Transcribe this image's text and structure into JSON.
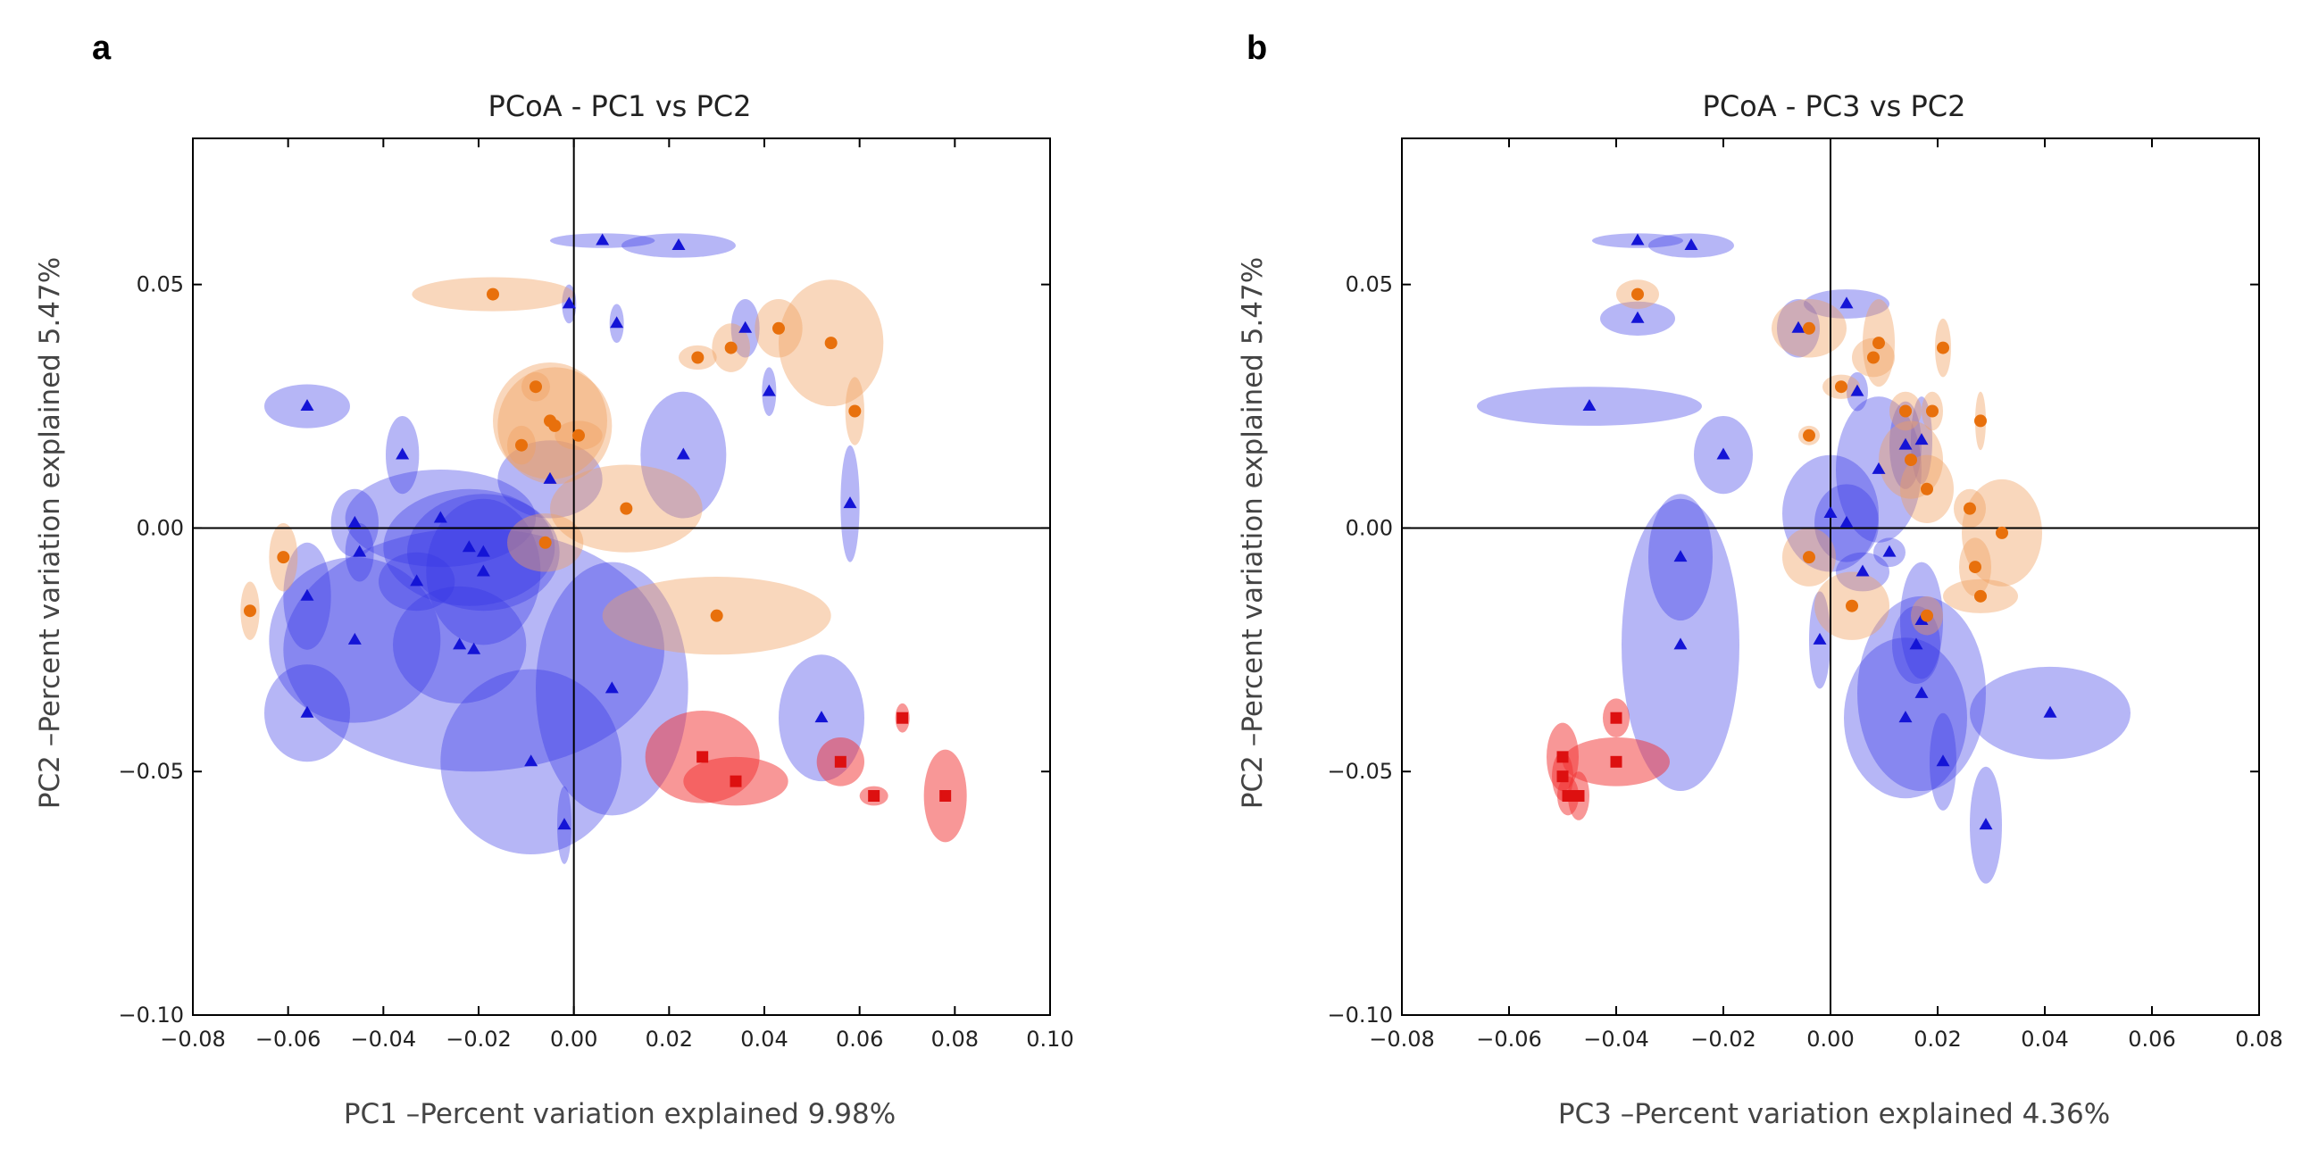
{
  "panels": [
    {
      "letter": "a"
    },
    {
      "letter": "b"
    }
  ],
  "colors": {
    "blue_fill": "#3434e6",
    "blue_marker": "#1414d6",
    "orange_fill": "#f0a060",
    "orange_marker": "#e8700c",
    "red_fill": "#f23030",
    "red_marker": "#dd1010"
  },
  "chart_data": [
    {
      "type": "scatter",
      "title": "PCoA - PC1 vs PC2",
      "xlabel": "PC1 –Percent variation explained 9.98%",
      "ylabel": "PC2 –Percent variation explained 5.47%",
      "xlim": [
        -0.08,
        0.1
      ],
      "ylim": [
        -0.1,
        0.08
      ],
      "xticks": [
        -0.08,
        -0.06,
        -0.04,
        -0.02,
        0.0,
        0.02,
        0.04,
        0.06,
        0.08,
        0.1
      ],
      "xtick_labels": [
        "−0.08",
        "−0.06",
        "−0.04",
        "−0.02",
        "0.00",
        "0.02",
        "0.04",
        "0.06",
        "0.08",
        "0.10"
      ],
      "yticks": [
        -0.1,
        -0.05,
        0.0,
        0.05
      ],
      "ytick_labels": [
        "−0.10",
        "−0.05",
        "0.00",
        "0.05"
      ],
      "zero_lines": true,
      "marker_shapes": [
        "triangle",
        "circle",
        "square"
      ],
      "series": [
        {
          "color": "blue",
          "marker": "triangle",
          "points": [
            {
              "x": 0.006,
              "y": 0.059,
              "rx": 0.011,
              "ry": 0.0015
            },
            {
              "x": 0.022,
              "y": 0.058,
              "rx": 0.012,
              "ry": 0.0025
            },
            {
              "x": -0.001,
              "y": 0.046,
              "rx": 0.0015,
              "ry": 0.004
            },
            {
              "x": 0.009,
              "y": 0.042,
              "rx": 0.0015,
              "ry": 0.004
            },
            {
              "x": 0.036,
              "y": 0.041,
              "rx": 0.003,
              "ry": 0.006
            },
            {
              "x": 0.041,
              "y": 0.028,
              "rx": 0.0015,
              "ry": 0.005
            },
            {
              "x": -0.056,
              "y": 0.025,
              "rx": 0.009,
              "ry": 0.0045
            },
            {
              "x": -0.036,
              "y": 0.015,
              "rx": 0.0035,
              "ry": 0.008
            },
            {
              "x": 0.023,
              "y": 0.015,
              "rx": 0.009,
              "ry": 0.013
            },
            {
              "x": -0.005,
              "y": 0.01,
              "rx": 0.011,
              "ry": 0.008
            },
            {
              "x": 0.058,
              "y": 0.005,
              "rx": 0.002,
              "ry": 0.012
            },
            {
              "x": -0.046,
              "y": 0.001,
              "rx": 0.005,
              "ry": 0.007
            },
            {
              "x": -0.028,
              "y": 0.002,
              "rx": 0.02,
              "ry": 0.01
            },
            {
              "x": -0.045,
              "y": -0.005,
              "rx": 0.003,
              "ry": 0.006
            },
            {
              "x": -0.022,
              "y": -0.004,
              "rx": 0.018,
              "ry": 0.012
            },
            {
              "x": -0.019,
              "y": -0.005,
              "rx": 0.016,
              "ry": 0.012
            },
            {
              "x": -0.033,
              "y": -0.011,
              "rx": 0.008,
              "ry": 0.006
            },
            {
              "x": -0.019,
              "y": -0.009,
              "rx": 0.012,
              "ry": 0.015
            },
            {
              "x": -0.056,
              "y": -0.014,
              "rx": 0.005,
              "ry": 0.011
            },
            {
              "x": -0.046,
              "y": -0.023,
              "rx": 0.018,
              "ry": 0.017
            },
            {
              "x": -0.024,
              "y": -0.024,
              "rx": 0.014,
              "ry": 0.012
            },
            {
              "x": -0.021,
              "y": -0.025,
              "rx": 0.04,
              "ry": 0.025
            },
            {
              "x": 0.008,
              "y": -0.033,
              "rx": 0.016,
              "ry": 0.026
            },
            {
              "x": 0.052,
              "y": -0.039,
              "rx": 0.009,
              "ry": 0.013
            },
            {
              "x": -0.056,
              "y": -0.038,
              "rx": 0.009,
              "ry": 0.01
            },
            {
              "x": -0.009,
              "y": -0.048,
              "rx": 0.019,
              "ry": 0.019
            },
            {
              "x": -0.002,
              "y": -0.061,
              "rx": 0.0015,
              "ry": 0.008
            }
          ]
        },
        {
          "color": "orange",
          "marker": "circle",
          "points": [
            {
              "x": -0.017,
              "y": 0.048,
              "rx": 0.017,
              "ry": 0.0035
            },
            {
              "x": 0.054,
              "y": 0.038,
              "rx": 0.011,
              "ry": 0.013
            },
            {
              "x": 0.043,
              "y": 0.041,
              "rx": 0.005,
              "ry": 0.006
            },
            {
              "x": 0.033,
              "y": 0.037,
              "rx": 0.004,
              "ry": 0.005
            },
            {
              "x": 0.026,
              "y": 0.035,
              "rx": 0.004,
              "ry": 0.0025
            },
            {
              "x": -0.008,
              "y": 0.029,
              "rx": 0.003,
              "ry": 0.003
            },
            {
              "x": -0.005,
              "y": 0.022,
              "rx": 0.012,
              "ry": 0.012
            },
            {
              "x": -0.004,
              "y": 0.021,
              "rx": 0.012,
              "ry": 0.012
            },
            {
              "x": -0.011,
              "y": 0.017,
              "rx": 0.003,
              "ry": 0.004
            },
            {
              "x": 0.059,
              "y": 0.024,
              "rx": 0.002,
              "ry": 0.007
            },
            {
              "x": 0.001,
              "y": 0.019,
              "rx": 0.005,
              "ry": 0.003
            },
            {
              "x": 0.011,
              "y": 0.004,
              "rx": 0.016,
              "ry": 0.009
            },
            {
              "x": -0.006,
              "y": -0.003,
              "rx": 0.008,
              "ry": 0.006
            },
            {
              "x": -0.061,
              "y": -0.006,
              "rx": 0.003,
              "ry": 0.007
            },
            {
              "x": -0.068,
              "y": -0.017,
              "rx": 0.002,
              "ry": 0.006
            },
            {
              "x": 0.03,
              "y": -0.018,
              "rx": 0.024,
              "ry": 0.008
            }
          ]
        },
        {
          "color": "red",
          "marker": "square",
          "points": [
            {
              "x": 0.027,
              "y": -0.047,
              "rx": 0.012,
              "ry": 0.0095
            },
            {
              "x": 0.034,
              "y": -0.052,
              "rx": 0.011,
              "ry": 0.005
            },
            {
              "x": 0.056,
              "y": -0.048,
              "rx": 0.005,
              "ry": 0.005
            },
            {
              "x": 0.063,
              "y": -0.055,
              "rx": 0.003,
              "ry": 0.002
            },
            {
              "x": 0.069,
              "y": -0.039,
              "rx": 0.0015,
              "ry": 0.003
            },
            {
              "x": 0.078,
              "y": -0.055,
              "rx": 0.0045,
              "ry": 0.0095
            }
          ]
        }
      ]
    },
    {
      "type": "scatter",
      "title": "PCoA - PC3 vs PC2",
      "xlabel": "PC3 –Percent variation explained 4.36%",
      "ylabel": "PC2 –Percent variation explained 5.47%",
      "xlim": [
        -0.08,
        0.08
      ],
      "ylim": [
        -0.1,
        0.08
      ],
      "xticks": [
        -0.08,
        -0.06,
        -0.04,
        -0.02,
        0.0,
        0.02,
        0.04,
        0.06,
        0.08
      ],
      "xtick_labels": [
        "−0.08",
        "−0.06",
        "−0.04",
        "−0.02",
        "0.00",
        "0.02",
        "0.04",
        "0.06",
        "0.08"
      ],
      "yticks": [
        -0.1,
        -0.05,
        0.0,
        0.05
      ],
      "ytick_labels": [
        "−0.10",
        "−0.05",
        "0.00",
        "0.05"
      ],
      "zero_lines": true,
      "marker_shapes": [
        "triangle",
        "circle",
        "square"
      ],
      "series": [
        {
          "color": "blue",
          "marker": "triangle",
          "points": [
            {
              "x": -0.036,
              "y": 0.059,
              "rx": 0.0085,
              "ry": 0.0015
            },
            {
              "x": -0.026,
              "y": 0.058,
              "rx": 0.008,
              "ry": 0.0025
            },
            {
              "x": -0.036,
              "y": 0.043,
              "rx": 0.007,
              "ry": 0.0035
            },
            {
              "x": -0.045,
              "y": 0.025,
              "rx": 0.021,
              "ry": 0.004
            },
            {
              "x": -0.02,
              "y": 0.015,
              "rx": 0.0055,
              "ry": 0.008
            },
            {
              "x": 0.003,
              "y": 0.046,
              "rx": 0.008,
              "ry": 0.003
            },
            {
              "x": -0.006,
              "y": 0.041,
              "rx": 0.004,
              "ry": 0.006
            },
            {
              "x": 0.005,
              "y": 0.028,
              "rx": 0.002,
              "ry": 0.004
            },
            {
              "x": 0.009,
              "y": 0.012,
              "rx": 0.008,
              "ry": 0.015
            },
            {
              "x": 0.014,
              "y": 0.017,
              "rx": 0.003,
              "ry": 0.009
            },
            {
              "x": 0.017,
              "y": 0.018,
              "rx": 0.002,
              "ry": 0.009
            },
            {
              "x": 0.0,
              "y": 0.003,
              "rx": 0.009,
              "ry": 0.012
            },
            {
              "x": 0.003,
              "y": 0.001,
              "rx": 0.006,
              "ry": 0.008
            },
            {
              "x": -0.028,
              "y": -0.006,
              "rx": 0.006,
              "ry": 0.013
            },
            {
              "x": -0.028,
              "y": -0.024,
              "rx": 0.011,
              "ry": 0.03
            },
            {
              "x": 0.006,
              "y": -0.009,
              "rx": 0.005,
              "ry": 0.004
            },
            {
              "x": 0.011,
              "y": -0.005,
              "rx": 0.003,
              "ry": 0.003
            },
            {
              "x": -0.002,
              "y": -0.023,
              "rx": 0.002,
              "ry": 0.01
            },
            {
              "x": 0.017,
              "y": -0.019,
              "rx": 0.004,
              "ry": 0.012
            },
            {
              "x": 0.016,
              "y": -0.024,
              "rx": 0.0045,
              "ry": 0.008
            },
            {
              "x": 0.017,
              "y": -0.034,
              "rx": 0.012,
              "ry": 0.02
            },
            {
              "x": 0.014,
              "y": -0.039,
              "rx": 0.0115,
              "ry": 0.0165
            },
            {
              "x": 0.021,
              "y": -0.048,
              "rx": 0.0025,
              "ry": 0.01
            },
            {
              "x": 0.041,
              "y": -0.038,
              "rx": 0.015,
              "ry": 0.0095
            },
            {
              "x": 0.029,
              "y": -0.061,
              "rx": 0.003,
              "ry": 0.012
            }
          ]
        },
        {
          "color": "orange",
          "marker": "circle",
          "points": [
            {
              "x": -0.036,
              "y": 0.048,
              "rx": 0.004,
              "ry": 0.003
            },
            {
              "x": -0.004,
              "y": 0.041,
              "rx": 0.007,
              "ry": 0.006
            },
            {
              "x": 0.009,
              "y": 0.038,
              "rx": 0.003,
              "ry": 0.009
            },
            {
              "x": 0.008,
              "y": 0.035,
              "rx": 0.004,
              "ry": 0.004
            },
            {
              "x": 0.021,
              "y": 0.037,
              "rx": 0.0015,
              "ry": 0.006
            },
            {
              "x": 0.002,
              "y": 0.029,
              "rx": 0.0035,
              "ry": 0.0025
            },
            {
              "x": 0.014,
              "y": 0.024,
              "rx": 0.003,
              "ry": 0.004
            },
            {
              "x": 0.019,
              "y": 0.024,
              "rx": 0.002,
              "ry": 0.004
            },
            {
              "x": -0.004,
              "y": 0.019,
              "rx": 0.002,
              "ry": 0.002
            },
            {
              "x": 0.028,
              "y": 0.022,
              "rx": 0.001,
              "ry": 0.006
            },
            {
              "x": 0.015,
              "y": 0.014,
              "rx": 0.006,
              "ry": 0.008
            },
            {
              "x": 0.018,
              "y": 0.008,
              "rx": 0.005,
              "ry": 0.007
            },
            {
              "x": 0.026,
              "y": 0.004,
              "rx": 0.003,
              "ry": 0.004
            },
            {
              "x": 0.032,
              "y": -0.001,
              "rx": 0.0075,
              "ry": 0.011
            },
            {
              "x": 0.027,
              "y": -0.008,
              "rx": 0.003,
              "ry": 0.006
            },
            {
              "x": -0.004,
              "y": -0.006,
              "rx": 0.005,
              "ry": 0.006
            },
            {
              "x": 0.004,
              "y": -0.016,
              "rx": 0.007,
              "ry": 0.007
            },
            {
              "x": 0.028,
              "y": -0.014,
              "rx": 0.007,
              "ry": 0.0035
            },
            {
              "x": 0.018,
              "y": -0.018,
              "rx": 0.003,
              "ry": 0.004
            }
          ]
        },
        {
          "color": "red",
          "marker": "square",
          "points": [
            {
              "x": -0.04,
              "y": -0.039,
              "rx": 0.0025,
              "ry": 0.004
            },
            {
              "x": -0.04,
              "y": -0.048,
              "rx": 0.01,
              "ry": 0.005
            },
            {
              "x": -0.05,
              "y": -0.047,
              "rx": 0.003,
              "ry": 0.007
            },
            {
              "x": -0.05,
              "y": -0.051,
              "rx": 0.002,
              "ry": 0.005
            },
            {
              "x": -0.049,
              "y": -0.055,
              "rx": 0.002,
              "ry": 0.004
            },
            {
              "x": -0.047,
              "y": -0.055,
              "rx": 0.002,
              "ry": 0.005
            }
          ]
        }
      ]
    }
  ]
}
